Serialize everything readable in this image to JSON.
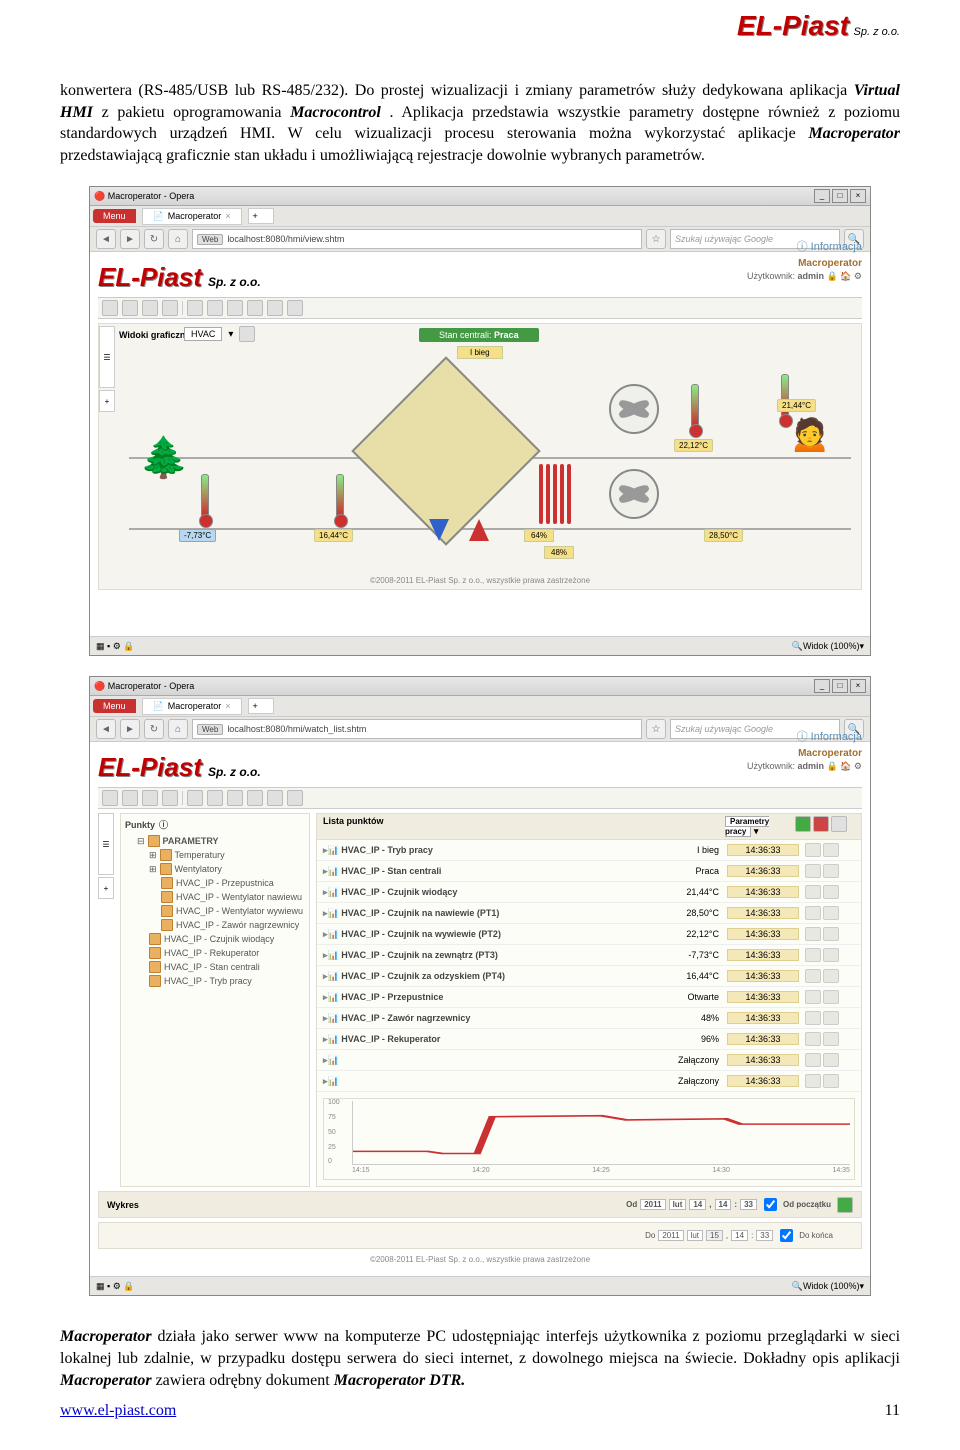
{
  "header": {
    "logo_main": "EL-Piast",
    "logo_sub": "Sp. z o.o."
  },
  "para1": {
    "t1": "konwertera (RS-485/USB lub RS-485/232). Do prostej wizualizacji i zmiany parametrów służy dedykowana aplikacja ",
    "b1": "Virtual HMI",
    "t2": " z pakietu oprogramowania ",
    "b2": "Macrocontrol",
    "t3": ". Aplikacja przedstawia wszystkie parametry dostępne również z poziomu standardowych urządzeń HMI. W celu wizualizacji procesu sterowania można wykorzystać aplikacje ",
    "b3": "Macroperator",
    "t4": " przedstawiającą graficznie stan układu i umożliwiającą rejestracje dowolnie wybranych parametrów."
  },
  "ss": {
    "title": "Macroperator - Opera",
    "menu": "Menu",
    "tab": "Macroperator",
    "url_web": "Web",
    "url1": "localhost:8080/hmi/view.shtm",
    "url2": "localhost:8080/hmi/watch_list.shtm",
    "search_ph": "Szukaj używając Google",
    "app_logo": "EL-Piast",
    "app_sub": "Sp. z o.o.",
    "info": "Informacja",
    "brand": "Macroperator",
    "user_lbl": "Użytkownik:",
    "user": "admin",
    "copyright": "©2008-2011 EL-Piast Sp. z o.o., wszystkie prawa zastrzeżone",
    "status_zoom": "Widok (100%)"
  },
  "hvac": {
    "tab_label": "Widoki graficzne",
    "select": "HVAC",
    "status_lbl": "Stan centrali:",
    "status_val": "Praca",
    "bieg": "I bieg",
    "temps": {
      "out": "-7,73°C",
      "heater": "16,44°C",
      "supply": "22,12°C",
      "room": "21,44°C",
      "return": "28,50°C"
    },
    "pct": {
      "damper": "64%",
      "heater": "48%"
    }
  },
  "points": {
    "tab_label": "Punkty",
    "tree_root": "PARAMETRY",
    "tree": [
      "Temperatury",
      "Wentylatory",
      "HVAC_IP - Przepustnica",
      "HVAC_IP - Wentylator nawiewu",
      "HVAC_IP - Wentylator wywiewu",
      "HVAC_IP - Zawór nagrzewnicy",
      "HVAC_IP - Czujnik wiodący",
      "HVAC_IP - Rekuperator",
      "HVAC_IP - Stan centrali",
      "HVAC_IP - Tryb pracy"
    ],
    "list_title": "Lista punktów",
    "list_sel": "Parametry pracy",
    "rows": [
      {
        "name": "HVAC_IP - Tryb pracy",
        "val": "I bieg",
        "time": "14:36:33"
      },
      {
        "name": "HVAC_IP - Stan centrali",
        "val": "Praca",
        "time": "14:36:33"
      },
      {
        "name": "HVAC_IP - Czujnik wiodący",
        "val": "21,44°C",
        "time": "14:36:33"
      },
      {
        "name": "HVAC_IP - Czujnik na nawiewie (PT1)",
        "val": "28,50°C",
        "time": "14:36:33"
      },
      {
        "name": "HVAC_IP - Czujnik na wywiewie (PT2)",
        "val": "22,12°C",
        "time": "14:36:33"
      },
      {
        "name": "HVAC_IP - Czujnik na zewnątrz (PT3)",
        "val": "-7,73°C",
        "time": "14:36:33"
      },
      {
        "name": "HVAC_IP - Czujnik za odzyskiem (PT4)",
        "val": "16,44°C",
        "time": "14:36:33"
      },
      {
        "name": "HVAC_IP - Przepustnice",
        "val": "Otwarte",
        "time": "14:36:33"
      },
      {
        "name": "HVAC_IP - Zawór nagrzewnicy",
        "val": "48%",
        "time": "14:36:33"
      },
      {
        "name": "HVAC_IP - Rekuperator",
        "val": "96%",
        "time": "14:36:33"
      },
      {
        "name": "",
        "val": "Załączony",
        "time": "14:36:33"
      },
      {
        "name": "",
        "val": "Załączony",
        "time": "14:36:33"
      }
    ],
    "chart": {
      "y": [
        "100",
        "75",
        "50",
        "25",
        "0"
      ],
      "x": [
        "14:15",
        "14:20",
        "14:25",
        "14:30",
        "14:35"
      ]
    },
    "wykres": "Wykres",
    "od": "Od",
    "do": "Do",
    "od_vals": [
      "2011",
      "lut",
      "14",
      "14",
      "33"
    ],
    "cb1": "Od początku",
    "cb2": "Do końca"
  },
  "para2": {
    "b1": "Macroperator",
    "t1": " działa jako serwer www na komputerze PC udostępniając interfejs użytkownika z poziomu przeglądarki w sieci lokalnej lub zdalnie, w przypadku dostępu serwera do sieci internet, z dowolnego miejsca na świecie. Dokładny opis aplikacji ",
    "b2": "Macroperator",
    "t2": " zawiera odrębny dokument ",
    "b3": "Macroperator DTR."
  },
  "footer": {
    "url": "www.el-piast.com",
    "page": "11"
  }
}
